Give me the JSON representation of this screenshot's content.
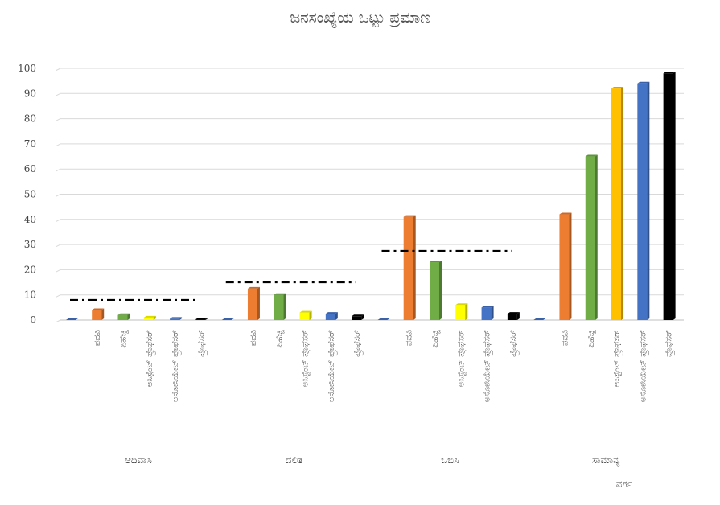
{
  "chart_data": {
    "type": "bar",
    "title": "ಜನಸಂಖ್ಯೆಯ ಒಟ್ಟು ಪ್ರಮಾಣ",
    "xlabel": "ವರ್ಗ",
    "ylabel": "",
    "ylim": [
      0,
      100
    ],
    "yticks": [
      0,
      10,
      20,
      30,
      40,
      50,
      60,
      70,
      80,
      90,
      100
    ],
    "grid": true,
    "legend": "none",
    "categories": [
      "",
      "ಪದವಿ",
      "ಪಿಹೆಚ್ಡಿ",
      "ಅಸಿಸ್ಟೆಂಟ್ ಪ್ರೊಫೆಸರ್",
      "ಅಸೋಸಿಯೇಟ್ ಪ್ರೊಫೆಸರ್",
      "ಪ್ರೊಫೆಸರ್"
    ],
    "groups": [
      {
        "name": "ಆದಿವಾಸಿ",
        "values": [
          0,
          4,
          2,
          1,
          0.5,
          0.3
        ],
        "reference": 8
      },
      {
        "name": "ದಲಿತ",
        "values": [
          0,
          12.5,
          10,
          3,
          2.5,
          1.5
        ],
        "reference": 15
      },
      {
        "name": "ಒಬಿಸಿ",
        "values": [
          0,
          41,
          23,
          6,
          5,
          2.5
        ],
        "reference": 27.5
      },
      {
        "name": "ಸಾಮಾನ್ಯ",
        "values": [
          0,
          42,
          65,
          92,
          94,
          98
        ],
        "reference": null
      }
    ],
    "colors": {
      "bars_default": [
        "#4472C4",
        "#ED7D31",
        "#70AD47",
        "#FFFF00",
        "#4472C4",
        "#000000"
      ],
      "bars_samanya": [
        "#4472C4",
        "#ED7D31",
        "#70AD47",
        "#FFC000",
        "#4472C4",
        "#000000"
      ],
      "reference_line": "#000000",
      "gridline": "#D9D9D9"
    }
  }
}
